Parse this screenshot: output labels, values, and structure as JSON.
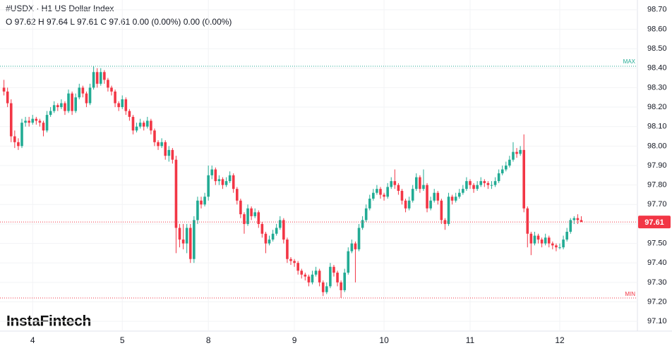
{
  "chart_data": {
    "type": "candlestick",
    "title": "#USDX · H1 US Dollar Index",
    "subtitle": "O 97.62 H 97.64 L 97.61 C 97.61 0.00 (0.00%) 0.00 (0.00%)",
    "logo": "InstaFintech",
    "up_color": "#22ab94",
    "down_color": "#f23645",
    "categories": [
      null,
      null,
      null,
      null,
      null,
      null,
      null,
      null,
      "4",
      null,
      null,
      null,
      null,
      null,
      null,
      null,
      null,
      null,
      null,
      null,
      null,
      null,
      null,
      null,
      null,
      null,
      null,
      null,
      null,
      null,
      null,
      null,
      null,
      "5",
      null,
      null,
      null,
      null,
      null,
      null,
      null,
      null,
      null,
      null,
      null,
      null,
      null,
      null,
      null,
      null,
      null,
      null,
      null,
      null,
      null,
      null,
      null,
      "8",
      null,
      null,
      null,
      null,
      null,
      null,
      null,
      null,
      null,
      null,
      null,
      null,
      null,
      null,
      null,
      null,
      null,
      null,
      null,
      null,
      null,
      null,
      null,
      "9",
      null,
      null,
      null,
      null,
      null,
      null,
      null,
      null,
      null,
      null,
      null,
      null,
      null,
      null,
      null,
      null,
      null,
      null,
      null,
      null,
      null,
      null,
      null,
      null,
      "10",
      null,
      null,
      null,
      null,
      null,
      null,
      null,
      null,
      null,
      null,
      null,
      null,
      null,
      null,
      null,
      null,
      null,
      null,
      null,
      null,
      null,
      null,
      null,
      "11",
      null,
      null,
      null,
      null,
      null,
      null,
      null,
      null,
      null,
      null,
      null,
      null,
      null,
      null,
      null,
      null,
      null,
      null,
      null,
      null,
      null,
      null,
      null,
      null,
      "12",
      null,
      null,
      null,
      null,
      null,
      null
    ],
    "open": [
      98.3,
      98.28,
      98.22,
      98.05,
      98.02,
      98.0,
      98.12,
      98.13,
      98.12,
      98.14,
      98.13,
      98.12,
      98.08,
      98.16,
      98.18,
      98.21,
      98.2,
      98.22,
      98.18,
      98.27,
      98.18,
      98.25,
      98.3,
      98.27,
      98.22,
      98.3,
      98.38,
      98.32,
      98.38,
      98.34,
      98.3,
      98.28,
      98.22,
      98.2,
      98.24,
      98.18,
      98.15,
      98.08,
      98.1,
      98.12,
      98.1,
      98.13,
      98.08,
      98.02,
      98.0,
      98.02,
      97.95,
      97.98,
      97.93,
      97.58,
      97.52,
      97.5,
      97.58,
      97.42,
      97.62,
      97.72,
      97.7,
      97.74,
      97.85,
      97.88,
      97.82,
      97.83,
      97.8,
      97.82,
      97.85,
      97.78,
      97.72,
      97.65,
      97.6,
      97.68,
      97.64,
      97.66,
      97.6,
      97.55,
      97.5,
      97.52,
      97.55,
      97.58,
      97.62,
      97.52,
      97.42,
      97.41,
      97.4,
      97.36,
      97.34,
      97.33,
      97.3,
      97.34,
      97.36,
      97.3,
      97.25,
      97.28,
      97.38,
      97.35,
      97.3,
      97.26,
      97.35,
      97.46,
      97.5,
      97.47,
      97.58,
      97.62,
      97.68,
      97.73,
      97.76,
      97.78,
      97.75,
      97.74,
      97.79,
      97.82,
      97.8,
      97.77,
      97.72,
      97.68,
      97.72,
      97.78,
      97.84,
      97.78,
      97.8,
      97.68,
      97.72,
      97.76,
      97.72,
      97.62,
      97.6,
      97.74,
      97.72,
      97.74,
      97.76,
      97.78,
      97.82,
      97.8,
      97.78,
      97.8,
      97.82,
      97.81,
      97.8,
      97.8,
      97.82,
      97.86,
      97.88,
      97.9,
      97.93,
      97.97,
      97.96,
      97.98,
      97.68,
      97.55,
      97.5,
      97.54,
      97.52,
      97.5,
      97.53,
      97.5,
      97.49,
      97.48,
      97.48,
      97.52,
      97.56,
      97.62,
      97.63,
      97.62
    ],
    "high": [
      98.34,
      98.3,
      98.24,
      98.08,
      98.04,
      98.14,
      98.15,
      98.15,
      98.16,
      98.15,
      98.14,
      98.13,
      98.18,
      98.2,
      98.23,
      98.22,
      98.24,
      98.23,
      98.29,
      98.28,
      98.27,
      98.32,
      98.31,
      98.28,
      98.32,
      98.41,
      98.4,
      98.4,
      98.39,
      98.35,
      98.31,
      98.29,
      98.23,
      98.26,
      98.25,
      98.19,
      98.16,
      98.12,
      98.14,
      98.13,
      98.15,
      98.14,
      98.09,
      98.03,
      98.04,
      98.03,
      98.0,
      97.99,
      97.95,
      97.6,
      97.6,
      97.6,
      97.6,
      97.64,
      97.74,
      97.74,
      97.76,
      97.9,
      97.9,
      97.89,
      97.85,
      97.84,
      97.84,
      97.87,
      97.86,
      97.79,
      97.73,
      97.66,
      97.7,
      97.69,
      97.68,
      97.67,
      97.61,
      97.56,
      97.54,
      97.57,
      97.6,
      97.64,
      97.63,
      97.53,
      97.43,
      97.42,
      97.41,
      97.37,
      97.35,
      97.34,
      97.36,
      97.38,
      97.37,
      97.31,
      97.3,
      97.4,
      97.39,
      97.36,
      97.31,
      97.37,
      97.48,
      97.52,
      97.51,
      97.6,
      97.64,
      97.7,
      97.75,
      97.78,
      97.8,
      97.79,
      97.76,
      97.81,
      97.84,
      97.88,
      97.81,
      97.78,
      97.73,
      97.74,
      97.8,
      97.86,
      97.85,
      97.88,
      97.81,
      97.74,
      97.78,
      97.77,
      97.73,
      97.63,
      97.76,
      97.75,
      97.76,
      97.78,
      97.8,
      97.84,
      97.83,
      97.81,
      97.82,
      97.84,
      97.83,
      97.82,
      97.82,
      97.84,
      97.88,
      97.9,
      97.92,
      97.95,
      98.02,
      97.99,
      98.0,
      98.06,
      97.69,
      97.56,
      97.56,
      97.55,
      97.53,
      97.55,
      97.54,
      97.51,
      97.5,
      97.5,
      97.54,
      97.58,
      97.63,
      97.64,
      97.65,
      97.64
    ],
    "low": [
      98.26,
      98.2,
      98.02,
      97.99,
      97.98,
      97.99,
      98.1,
      98.1,
      98.11,
      98.11,
      98.1,
      98.05,
      98.07,
      98.15,
      98.17,
      98.18,
      98.19,
      98.16,
      98.17,
      98.16,
      98.17,
      98.24,
      98.25,
      98.2,
      98.21,
      98.29,
      98.3,
      98.31,
      98.32,
      98.28,
      98.26,
      98.2,
      98.18,
      98.19,
      98.16,
      98.13,
      98.06,
      98.07,
      98.09,
      98.08,
      98.09,
      98.06,
      98.0,
      97.98,
      97.99,
      97.93,
      97.92,
      97.91,
      97.45,
      97.48,
      97.47,
      97.45,
      97.4,
      97.4,
      97.6,
      97.68,
      97.69,
      97.72,
      97.83,
      97.8,
      97.8,
      97.78,
      97.79,
      97.81,
      97.76,
      97.7,
      97.63,
      97.55,
      97.59,
      97.62,
      97.63,
      97.58,
      97.53,
      97.45,
      97.49,
      97.51,
      97.54,
      97.57,
      97.5,
      97.4,
      97.39,
      97.38,
      97.34,
      97.32,
      97.31,
      97.28,
      97.29,
      97.33,
      97.28,
      97.23,
      97.24,
      97.27,
      97.33,
      97.28,
      97.22,
      97.25,
      97.34,
      97.45,
      97.3,
      97.46,
      97.57,
      97.61,
      97.67,
      97.72,
      97.75,
      97.73,
      97.72,
      97.73,
      97.78,
      97.78,
      97.75,
      97.7,
      97.66,
      97.67,
      97.71,
      97.77,
      97.76,
      97.77,
      97.66,
      97.67,
      97.71,
      97.7,
      97.6,
      97.57,
      97.59,
      97.7,
      97.71,
      97.73,
      97.75,
      97.77,
      97.78,
      97.76,
      97.77,
      97.79,
      97.79,
      97.78,
      97.78,
      97.79,
      97.81,
      97.85,
      97.87,
      97.89,
      97.92,
      97.94,
      97.95,
      97.66,
      97.48,
      97.44,
      97.49,
      97.5,
      97.48,
      97.49,
      97.48,
      97.47,
      97.46,
      97.47,
      97.47,
      97.51,
      97.55,
      97.6,
      97.6,
      97.61
    ],
    "close": [
      98.28,
      98.22,
      98.05,
      98.02,
      98.0,
      98.12,
      98.13,
      98.12,
      98.14,
      98.13,
      98.12,
      98.08,
      98.16,
      98.18,
      98.21,
      98.2,
      98.22,
      98.18,
      98.27,
      98.18,
      98.25,
      98.3,
      98.27,
      98.22,
      98.3,
      98.38,
      98.32,
      98.38,
      98.34,
      98.3,
      98.28,
      98.22,
      98.2,
      98.24,
      98.18,
      98.15,
      98.08,
      98.1,
      98.12,
      98.1,
      98.13,
      98.08,
      98.02,
      98.0,
      98.02,
      97.95,
      97.98,
      97.93,
      97.58,
      97.52,
      97.5,
      97.58,
      97.42,
      97.62,
      97.72,
      97.7,
      97.74,
      97.85,
      97.88,
      97.82,
      97.83,
      97.8,
      97.82,
      97.85,
      97.78,
      97.72,
      97.65,
      97.6,
      97.68,
      97.64,
      97.66,
      97.6,
      97.55,
      97.5,
      97.52,
      97.55,
      97.58,
      97.62,
      97.52,
      97.42,
      97.41,
      97.4,
      97.36,
      97.34,
      97.33,
      97.3,
      97.34,
      97.36,
      97.3,
      97.25,
      97.28,
      97.38,
      97.35,
      97.3,
      97.26,
      97.35,
      97.46,
      97.5,
      97.47,
      97.58,
      97.62,
      97.68,
      97.73,
      97.76,
      97.78,
      97.75,
      97.74,
      97.79,
      97.82,
      97.8,
      97.77,
      97.72,
      97.68,
      97.72,
      97.78,
      97.84,
      97.78,
      97.8,
      97.68,
      97.72,
      97.76,
      97.72,
      97.62,
      97.6,
      97.74,
      97.72,
      97.74,
      97.76,
      97.78,
      97.82,
      97.8,
      97.78,
      97.8,
      97.82,
      97.81,
      97.8,
      97.8,
      97.82,
      97.86,
      97.88,
      97.9,
      97.93,
      97.97,
      97.96,
      97.98,
      97.68,
      97.55,
      97.5,
      97.54,
      97.52,
      97.5,
      97.53,
      97.5,
      97.49,
      97.48,
      97.48,
      97.52,
      97.56,
      97.62,
      97.63,
      97.62,
      97.61
    ],
    "ylim": [
      97.05,
      98.75
    ],
    "yticks": [
      {
        "value": 97.1,
        "label": "97.10"
      },
      {
        "value": 97.2,
        "label": "97.20"
      },
      {
        "value": 97.3,
        "label": "97.30"
      },
      {
        "value": 97.4,
        "label": "97.40"
      },
      {
        "value": 97.5,
        "label": "97.50"
      },
      {
        "value": 97.6,
        "label": "97.60"
      },
      {
        "value": 97.7,
        "label": "97.70"
      },
      {
        "value": 97.8,
        "label": "97.80"
      },
      {
        "value": 97.9,
        "label": "97.90"
      },
      {
        "value": 98.0,
        "label": "98.00"
      },
      {
        "value": 98.1,
        "label": "98.10"
      },
      {
        "value": 98.2,
        "label": "98.20"
      },
      {
        "value": 98.3,
        "label": "98.30"
      },
      {
        "value": 98.4,
        "label": "98.40"
      },
      {
        "value": 98.5,
        "label": "98.50"
      },
      {
        "value": 98.6,
        "label": "98.60"
      },
      {
        "value": 98.7,
        "label": "98.70"
      }
    ],
    "grid": true,
    "max_line": {
      "label": "MAX",
      "value": 98.41,
      "color": "#22ab94"
    },
    "min_line": {
      "label": "MIN",
      "value": 97.22,
      "color": "#f23645"
    },
    "last_price": {
      "value": 97.61,
      "color": "#f23645"
    }
  }
}
